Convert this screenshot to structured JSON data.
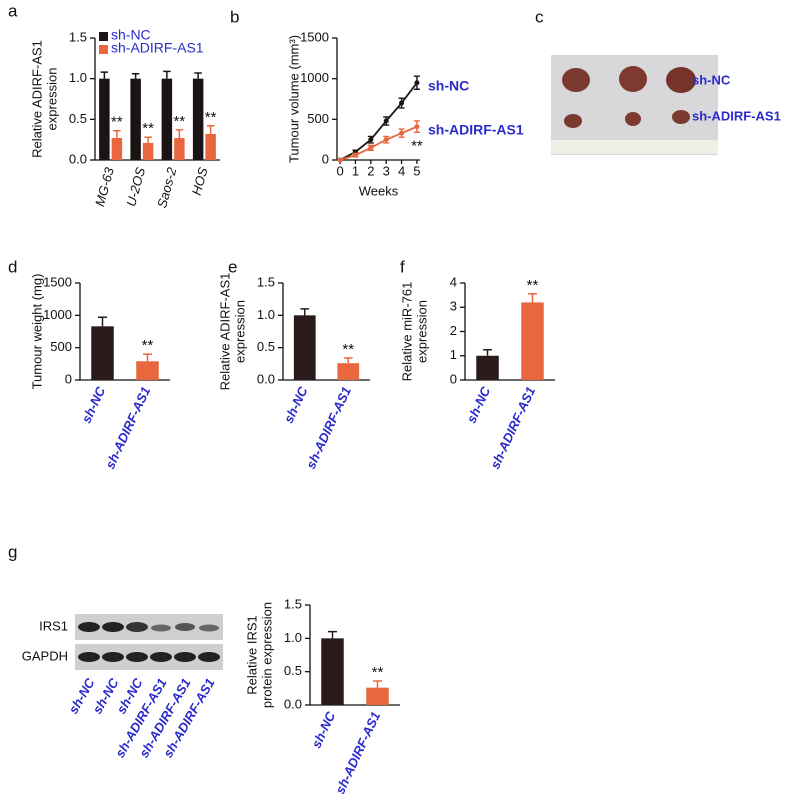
{
  "chart_data": [
    {
      "type": "bar",
      "label": "a",
      "ylabel": [
        "Relative ADIRF-AS1",
        "expression"
      ],
      "categories": [
        "MG-63",
        "U-2OS",
        "Saos-2",
        "HOS"
      ],
      "series": [
        {
          "name": "sh-NC",
          "color": "#1c1414",
          "values": [
            1.0,
            1.0,
            1.0,
            1.0
          ],
          "errors": [
            0.08,
            0.06,
            0.09,
            0.07
          ]
        },
        {
          "name": "sh-ADIRF-AS1",
          "color": "#e9673f",
          "values": [
            0.27,
            0.21,
            0.27,
            0.32
          ],
          "errors": [
            0.09,
            0.07,
            0.1,
            0.1
          ]
        }
      ],
      "ylim": [
        0,
        1.5
      ],
      "yticks": [
        {
          "value": 0,
          "label": "0.0"
        },
        {
          "value": 0.5,
          "label": "0.5"
        },
        {
          "value": 1,
          "label": "1.0"
        },
        {
          "value": 1.5,
          "label": "1.5"
        }
      ],
      "annotations": [
        {
          "text": "**",
          "x": "MG-63"
        },
        {
          "text": "**",
          "x": "U-2OS"
        },
        {
          "text": "**",
          "x": "Saos-2"
        },
        {
          "text": "**",
          "x": "HOS"
        }
      ],
      "legend": "upper left",
      "legend_color": "#2b2bcc",
      "category_color": "#111111"
    },
    {
      "type": "line",
      "label": "b",
      "ylabel": [
        "Tumour volume (mm³)"
      ],
      "xlabel": "Weeks",
      "x": [
        0,
        1,
        2,
        3,
        4,
        5
      ],
      "series": [
        {
          "name": "sh-NC",
          "color": "#1c1414",
          "values": [
            0,
            100,
            250,
            480,
            700,
            950
          ],
          "errors": [
            0,
            20,
            40,
            50,
            60,
            80
          ]
        },
        {
          "name": "sh-ADIRF-AS1",
          "color": "#e9673f",
          "values": [
            0,
            60,
            150,
            250,
            330,
            410
          ],
          "errors": [
            0,
            20,
            30,
            40,
            50,
            70
          ]
        }
      ],
      "xlim": [
        -0.2,
        5.2
      ],
      "xticks": [
        0,
        1,
        2,
        3,
        4,
        5
      ],
      "ylim": [
        0,
        1500
      ],
      "yticks": [
        0,
        500,
        1000,
        1500
      ],
      "annotations": [
        {
          "text": "**",
          "x": 5
        }
      ],
      "legend_color": "#2b2bcc"
    },
    {
      "type": "bar",
      "label": "d",
      "ylabel": [
        "Tumour weight (mg)"
      ],
      "categories": [
        "sh-NC",
        "sh-ADIRF-AS1"
      ],
      "values": [
        830,
        290
      ],
      "errors": [
        140,
        110
      ],
      "colors": [
        "#2a1a1a",
        "#e9673f"
      ],
      "ylim": [
        0,
        1500
      ],
      "yticks": [
        0,
        500,
        1000,
        1500
      ],
      "annotations": [
        {
          "text": "**",
          "x": "sh-ADIRF-AS1"
        }
      ],
      "category_color": "#2b2bcc"
    },
    {
      "type": "bar",
      "label": "e",
      "ylabel": [
        "Relative ADIRF-AS1",
        "expression"
      ],
      "categories": [
        "sh-NC",
        "sh-ADIRF-AS1"
      ],
      "values": [
        1.0,
        0.26
      ],
      "errors": [
        0.1,
        0.08
      ],
      "colors": [
        "#2a1a1a",
        "#e9673f"
      ],
      "ylim": [
        0,
        1.5
      ],
      "yticks": [
        {
          "value": 0,
          "label": "0.0"
        },
        {
          "value": 0.5,
          "label": "0.5"
        },
        {
          "value": 1,
          "label": "1.0"
        },
        {
          "value": 1.5,
          "label": "1.5"
        }
      ],
      "annotations": [
        {
          "text": "**",
          "x": "sh-ADIRF-AS1"
        }
      ],
      "category_color": "#2b2bcc"
    },
    {
      "type": "bar",
      "label": "f",
      "ylabel": [
        "Relative miR-761",
        "expression"
      ],
      "categories": [
        "sh-NC",
        "sh-ADIRF-AS1"
      ],
      "values": [
        1.0,
        3.2
      ],
      "errors": [
        0.25,
        0.35
      ],
      "colors": [
        "#2a1a1a",
        "#e9673f"
      ],
      "ylim": [
        0,
        4
      ],
      "yticks": [
        0,
        1,
        2,
        3,
        4
      ],
      "annotations": [
        {
          "text": "**",
          "x": "sh-ADIRF-AS1"
        }
      ],
      "category_color": "#2b2bcc"
    },
    {
      "type": "bar",
      "ylabel": [
        "Relative IRS1",
        "protein expression"
      ],
      "categories": [
        "sh-NC",
        "sh-ADIRF-AS1"
      ],
      "values": [
        1.0,
        0.26
      ],
      "errors": [
        0.1,
        0.1
      ],
      "colors": [
        "#2a1a1a",
        "#e9673f"
      ],
      "ylim": [
        0,
        1.5
      ],
      "yticks": [
        {
          "value": 0,
          "label": "0.0"
        },
        {
          "value": 0.5,
          "label": "0.5"
        },
        {
          "value": 1,
          "label": "1.0"
        },
        {
          "value": 1.5,
          "label": "1.5"
        }
      ],
      "annotations": [
        {
          "text": "**",
          "x": "sh-ADIRF-AS1"
        }
      ],
      "category_color": "#2b2bcc"
    }
  ],
  "photo": {
    "label": "c",
    "rows": [
      "sh-NC",
      "sh-ADIRF-AS1"
    ]
  },
  "blot": {
    "label": "g",
    "rows": [
      "IRS1",
      "GAPDH"
    ],
    "lanes": [
      "sh-NC",
      "sh-NC",
      "sh-NC",
      "sh-ADIRF-AS1",
      "sh-ADIRF-AS1",
      "sh-ADIRF-AS1"
    ]
  }
}
